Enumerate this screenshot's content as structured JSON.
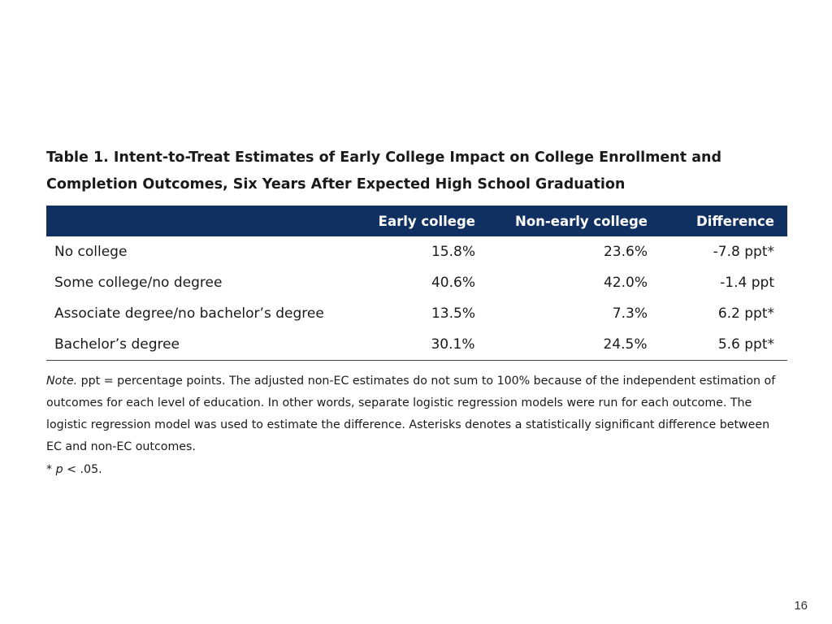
{
  "title": {
    "line1": "Table 1. Intent-to-Treat Estimates of Early College Impact on College Enrollment and",
    "line2": "Completion Outcomes, Six Years After Expected High School Graduation"
  },
  "table": {
    "headers": [
      "",
      "Early college",
      "Non-early college",
      "Difference"
    ],
    "rows": [
      {
        "label": "No college",
        "early": "15.8%",
        "non_early": "23.6%",
        "difference": "-7.8 ppt*"
      },
      {
        "label": "Some college/no degree",
        "early": "40.6%",
        "non_early": "42.0%",
        "difference": "-1.4 ppt"
      },
      {
        "label": "Associate degree/no bachelor’s degree",
        "early": "13.5%",
        "non_early": "7.3%",
        "difference": "6.2 ppt*"
      },
      {
        "label": "Bachelor’s degree",
        "early": "30.1%",
        "non_early": "24.5%",
        "difference": "5.6 ppt*"
      }
    ],
    "header_color": "#0f3060"
  },
  "note": {
    "label": "Note.",
    "text": " ppt = percentage points. The adjusted non-EC estimates do not sum to 100% because of the independent estimation of outcomes for each level of education. In other words, separate logistic regression models were run for each outcome. The logistic regression model was used to estimate the difference. Asterisks denotes a statistically significant difference between EC and non-EC outcomes.",
    "significance_prefix": "* ",
    "significance_p": "p",
    "significance_suffix": " < .05."
  },
  "page_number": "16"
}
